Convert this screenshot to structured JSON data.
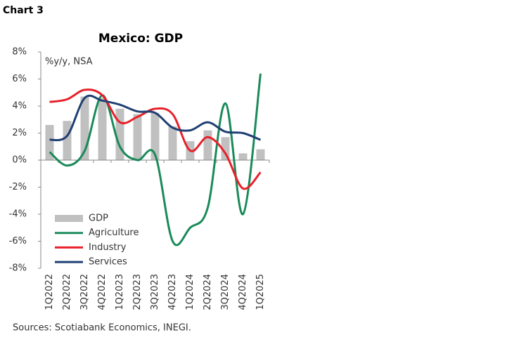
{
  "header": "Chart 3",
  "chart_data": {
    "type": "bar-line",
    "title": "Mexico: GDP",
    "annotation": "%y/y, NSA",
    "source": "Sources: Scotiabank Economics, INEGI.",
    "categories": [
      "1Q2022",
      "2Q2022",
      "3Q2022",
      "4Q2022",
      "1Q2023",
      "2Q2023",
      "3Q2023",
      "4Q2023",
      "1Q2024",
      "2Q2024",
      "3Q2024",
      "4Q2024",
      "1Q2025"
    ],
    "series": [
      {
        "name": "GDP",
        "kind": "bar",
        "color": "#c0c0c0",
        "values": [
          2.6,
          2.9,
          4.7,
          4.6,
          3.8,
          3.4,
          3.5,
          2.5,
          1.4,
          2.2,
          1.7,
          0.5,
          0.8
        ]
      },
      {
        "name": "Agriculture",
        "kind": "line",
        "color": "#1a8a5a",
        "values": [
          0.6,
          -0.4,
          0.7,
          4.8,
          1.0,
          0.0,
          0.4,
          -6.0,
          -5.0,
          -3.5,
          4.2,
          -4.0,
          6.4
        ]
      },
      {
        "name": "Industry",
        "kind": "line",
        "color": "#e8202a",
        "values": [
          4.3,
          4.5,
          5.2,
          4.8,
          2.8,
          3.2,
          3.8,
          3.4,
          0.7,
          1.7,
          0.5,
          -2.1,
          -0.9
        ]
      },
      {
        "name": "Services",
        "kind": "line",
        "color": "#1f3f73",
        "values": [
          1.5,
          1.8,
          4.6,
          4.4,
          4.1,
          3.6,
          3.5,
          2.4,
          2.2,
          2.8,
          2.1,
          2.0,
          1.5
        ]
      }
    ],
    "ylim": [
      -8,
      8
    ],
    "yticks": [
      {
        "value": -8,
        "label": "-8%"
      },
      {
        "value": -6,
        "label": "-6%"
      },
      {
        "value": -4,
        "label": "-4%"
      },
      {
        "value": -2,
        "label": "-2%"
      },
      {
        "value": 0,
        "label": "0%"
      },
      {
        "value": 2,
        "label": "2%"
      },
      {
        "value": 4,
        "label": "4%"
      },
      {
        "value": 6,
        "label": "6%"
      },
      {
        "value": 8,
        "label": "8%"
      }
    ],
    "legend": "lower left"
  }
}
